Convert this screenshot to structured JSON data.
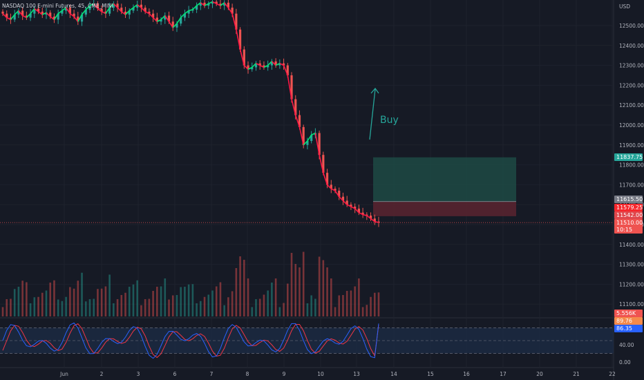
{
  "header": {
    "title": "NASDAQ 100 E-mini Futures, 45, CME_MINI",
    "currency": "USD"
  },
  "annotation": {
    "label": "Buy"
  },
  "price_axis": {
    "ticks": [
      "12500.00",
      "12400.00",
      "12300.00",
      "12200.00",
      "12100.00",
      "12000.00",
      "11900.00",
      "11800.00",
      "11700.00",
      "11600.00",
      "11500.00",
      "11400.00",
      "11300.00",
      "11200.00",
      "11100.00"
    ]
  },
  "osc_axis": {
    "ticks": [
      "40.00",
      "0.00"
    ]
  },
  "time_axis": {
    "ticks": [
      "Jun",
      "2",
      "3",
      "6",
      "7",
      "8",
      "9",
      "10",
      "13",
      "14",
      "15",
      "16",
      "17",
      "20",
      "21",
      "22"
    ]
  },
  "price_labels": {
    "target": "11837.75",
    "entry": "11615.50",
    "last_red": "11579.25",
    "stop": "11542.00",
    "close": "11510.00",
    "countdown": "10:15",
    "volume": "5.556K",
    "osc_k": "89.76",
    "osc_d": "86.35"
  },
  "colors": {
    "background": "#161a25",
    "up": "#26a69a",
    "down": "#ef5350",
    "ma_up": "#00e676",
    "ma_down": "#ff1744",
    "target_zone": "#1d4a44",
    "stop_zone": "#5a2430",
    "osc_k": "#2962ff",
    "osc_d": "#f23645",
    "osc_band": "#1b2a44"
  },
  "chart_data": {
    "type": "candlestick",
    "price_range": [
      11050,
      12560
    ],
    "target_price": 11837.75,
    "entry_price": 11615.5,
    "stop_price": 11542.0,
    "current_price": 11510.0,
    "oscillator_levels": [
      80,
      50,
      20
    ],
    "oscillator_last": {
      "k": 89.76,
      "d": 86.35
    },
    "closes": [
      12560,
      12540,
      12530,
      12555,
      12575,
      12550,
      12540,
      12560,
      12585,
      12570,
      12555,
      12565,
      12545,
      12530,
      12560,
      12575,
      12590,
      12560,
      12545,
      12520,
      12555,
      12580,
      12600,
      12610,
      12585,
      12570,
      12560,
      12590,
      12610,
      12590,
      12570,
      12555,
      12575,
      12590,
      12605,
      12590,
      12570,
      12560,
      12540,
      12520,
      12530,
      12550,
      12520,
      12490,
      12510,
      12540,
      12560,
      12575,
      12580,
      12600,
      12615,
      12600,
      12610,
      12620,
      12610,
      12600,
      12615,
      12590,
      12560,
      12480,
      12380,
      12300,
      12280,
      12290,
      12310,
      12300,
      12290,
      12300,
      12320,
      12300,
      12310,
      12300,
      12250,
      12130,
      12050,
      11990,
      11900,
      11920,
      11950,
      11960,
      11850,
      11760,
      11700,
      11680,
      11670,
      11640,
      11620,
      11600,
      11590,
      11580,
      11560,
      11550,
      11545,
      11530,
      11515,
      11510
    ]
  }
}
